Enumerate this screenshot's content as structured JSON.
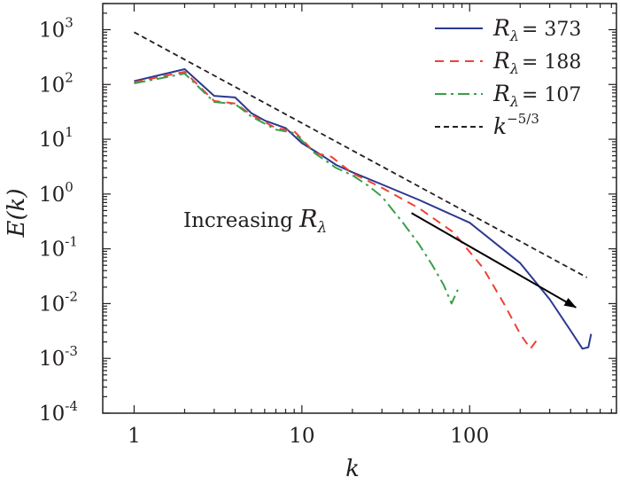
{
  "chart_data": {
    "type": "line",
    "x_scale": "log",
    "y_scale": "log",
    "xlim": [
      0.65,
      750
    ],
    "ylim": [
      0.0001,
      3000
    ],
    "xlabel": "k",
    "ylabel": "E(k)",
    "x_ticks": [
      {
        "value": 1,
        "label": "1"
      },
      {
        "value": 10,
        "label": "10"
      },
      {
        "value": 100,
        "label": "100"
      }
    ],
    "y_ticks": [
      {
        "value": 0.0001,
        "base": "10",
        "exp": "-4"
      },
      {
        "value": 0.001,
        "base": "10",
        "exp": "-3"
      },
      {
        "value": 0.01,
        "base": "10",
        "exp": "-2"
      },
      {
        "value": 0.1,
        "base": "10",
        "exp": "-1"
      },
      {
        "value": 1,
        "base": "10",
        "exp": "0"
      },
      {
        "value": 10,
        "base": "10",
        "exp": "1"
      },
      {
        "value": 100,
        "base": "10",
        "exp": "2"
      },
      {
        "value": 1000,
        "base": "10",
        "exp": "3"
      }
    ],
    "legend_position": "top-right",
    "grid": false,
    "series": [
      {
        "symbol": "R",
        "subscript": "λ",
        "value_text": "= 373",
        "color": "#2b3990",
        "dash": "solid",
        "points": [
          [
            1,
            115
          ],
          [
            2,
            190
          ],
          [
            3,
            62
          ],
          [
            4,
            58
          ],
          [
            5,
            30
          ],
          [
            6,
            22
          ],
          [
            8,
            16
          ],
          [
            10,
            8.5
          ],
          [
            13,
            5.2
          ],
          [
            16,
            3.4
          ],
          [
            20,
            2.5
          ],
          [
            30,
            1.5
          ],
          [
            50,
            0.78
          ],
          [
            100,
            0.3
          ],
          [
            200,
            0.055
          ],
          [
            300,
            0.012
          ],
          [
            400,
            0.0032
          ],
          [
            470,
            0.0015
          ],
          [
            510,
            0.0016
          ],
          [
            530,
            0.0028
          ]
        ]
      },
      {
        "symbol": "R",
        "subscript": "λ",
        "value_text": "= 188",
        "color": "#ef4136",
        "dash": "10,7",
        "points": [
          [
            1,
            110
          ],
          [
            2,
            170
          ],
          [
            3,
            50
          ],
          [
            4,
            45
          ],
          [
            5,
            28
          ],
          [
            7,
            16
          ],
          [
            9,
            14
          ],
          [
            12,
            5.6
          ],
          [
            15,
            4.8
          ],
          [
            20,
            2.4
          ],
          [
            30,
            1.3
          ],
          [
            50,
            0.55
          ],
          [
            80,
            0.2
          ],
          [
            120,
            0.045
          ],
          [
            160,
            0.01
          ],
          [
            200,
            0.0028
          ],
          [
            230,
            0.0015
          ],
          [
            250,
            0.0021
          ]
        ]
      },
      {
        "symbol": "R",
        "subscript": "λ",
        "value_text": "= 107",
        "color": "#3b9e47",
        "dash": "13,5,3,5",
        "points": [
          [
            1,
            105
          ],
          [
            2,
            158
          ],
          [
            3,
            48
          ],
          [
            4,
            44
          ],
          [
            5,
            26
          ],
          [
            7,
            15
          ],
          [
            9,
            13
          ],
          [
            12,
            5.5
          ],
          [
            16,
            3
          ],
          [
            20,
            2.2
          ],
          [
            25,
            1.4
          ],
          [
            30,
            0.9
          ],
          [
            40,
            0.3
          ],
          [
            50,
            0.12
          ],
          [
            60,
            0.05
          ],
          [
            70,
            0.022
          ],
          [
            78,
            0.01
          ],
          [
            85,
            0.018
          ]
        ]
      },
      {
        "symbol": "k",
        "superscript": "−5/3",
        "value_text": "",
        "color": "#231f20",
        "dash": "6,4",
        "points": [
          [
            1,
            900
          ],
          [
            500,
            0.03
          ]
        ]
      }
    ],
    "annotation": {
      "text": "Increasing ",
      "symbol": "R",
      "subscript": "λ",
      "arrow_from": [
        45,
        0.45
      ],
      "arrow_to": [
        430,
        0.0085
      ]
    }
  }
}
